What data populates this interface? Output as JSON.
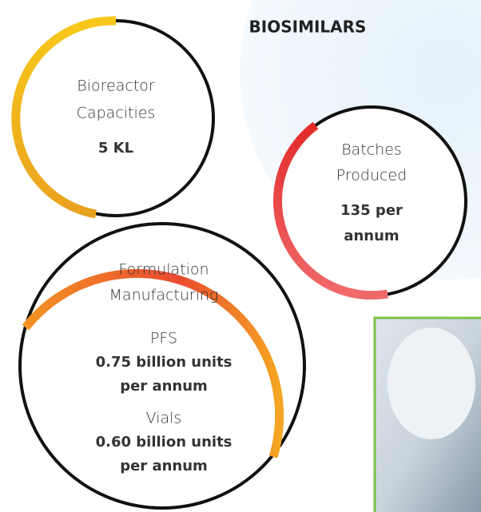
{
  "header": {
    "title": "BIOSIMILARS"
  },
  "circles": [
    {
      "label_lines": [
        "Bioreactor",
        "Capacities"
      ],
      "value_lines": [
        "5 KL"
      ]
    },
    {
      "label_lines": [
        "Batches",
        "Produced"
      ],
      "value_lines": [
        "135 per",
        "annum"
      ]
    },
    {
      "label_lines": [
        "Formulation",
        "Manufacturing"
      ],
      "items": [
        {
          "name": "PFS",
          "value_lines": [
            "0.75 billion units",
            "per annum"
          ]
        },
        {
          "name": "Vials",
          "value_lines": [
            "0.60 billion units",
            "per annum"
          ]
        }
      ]
    }
  ]
}
